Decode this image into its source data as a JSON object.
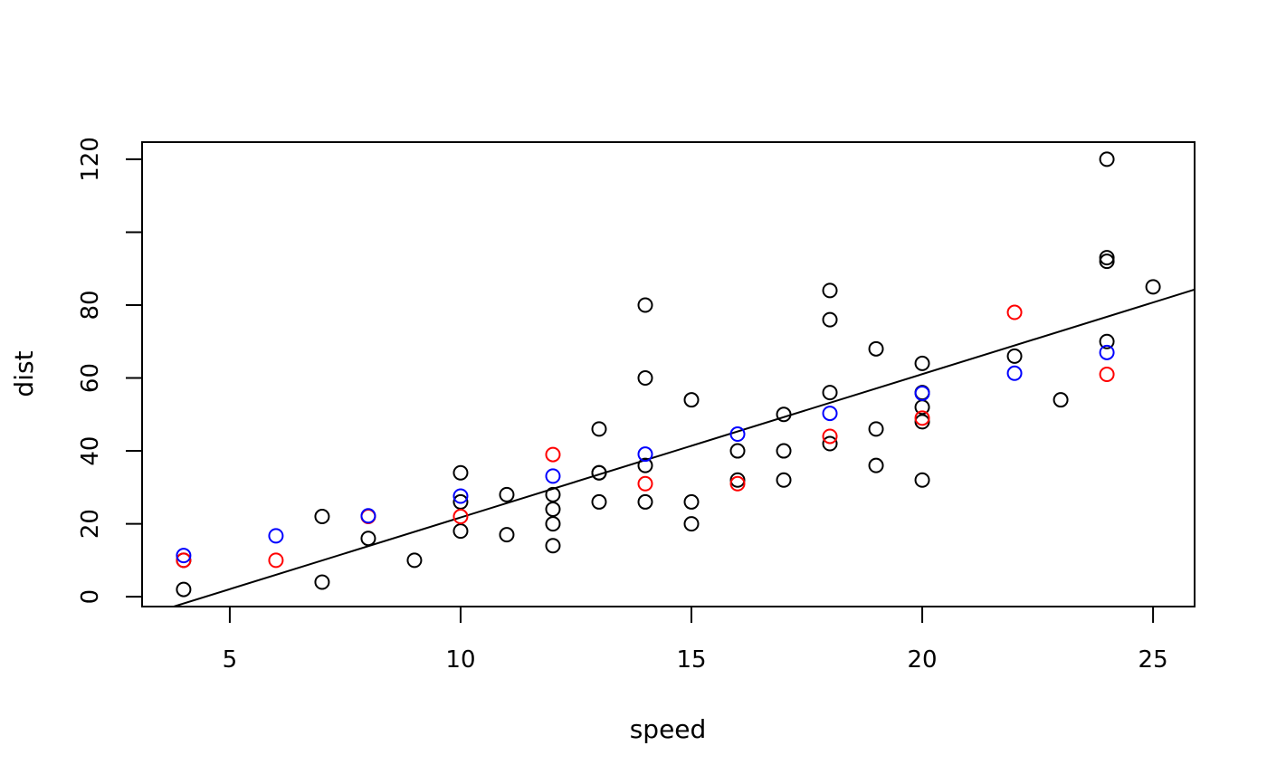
{
  "chart_data": {
    "type": "scatter",
    "xlabel": "speed",
    "ylabel": "dist",
    "xlim": [
      3.1,
      25.9
    ],
    "ylim": [
      -2.7,
      124.7
    ],
    "x_ticks": [
      5,
      10,
      15,
      20,
      25
    ],
    "y_ticks": [
      0,
      20,
      40,
      60,
      80,
      100,
      120
    ],
    "y_tick_labels": [
      "0",
      "20",
      "40",
      "60",
      "80",
      "",
      "120"
    ],
    "grid": false,
    "legend": "none",
    "series": [
      {
        "marker": "open-circle",
        "color": "#000000",
        "points": [
          [
            4,
            2
          ],
          [
            4,
            10
          ],
          [
            7,
            4
          ],
          [
            7,
            22
          ],
          [
            8,
            16
          ],
          [
            9,
            10
          ],
          [
            10,
            18
          ],
          [
            10,
            26
          ],
          [
            10,
            34
          ],
          [
            11,
            17
          ],
          [
            11,
            28
          ],
          [
            12,
            14
          ],
          [
            12,
            20
          ],
          [
            12,
            24
          ],
          [
            12,
            28
          ],
          [
            13,
            26
          ],
          [
            13,
            34
          ],
          [
            13,
            34
          ],
          [
            13,
            46
          ],
          [
            14,
            26
          ],
          [
            14,
            36
          ],
          [
            14,
            60
          ],
          [
            14,
            80
          ],
          [
            15,
            20
          ],
          [
            15,
            26
          ],
          [
            15,
            54
          ],
          [
            16,
            32
          ],
          [
            16,
            40
          ],
          [
            17,
            32
          ],
          [
            17,
            40
          ],
          [
            17,
            50
          ],
          [
            18,
            42
          ],
          [
            18,
            56
          ],
          [
            18,
            76
          ],
          [
            18,
            84
          ],
          [
            19,
            36
          ],
          [
            19,
            46
          ],
          [
            19,
            68
          ],
          [
            20,
            32
          ],
          [
            20,
            48
          ],
          [
            20,
            52
          ],
          [
            20,
            56
          ],
          [
            20,
            64
          ],
          [
            22,
            66
          ],
          [
            23,
            54
          ],
          [
            24,
            70
          ],
          [
            24,
            92
          ],
          [
            24,
            93
          ],
          [
            24,
            120
          ],
          [
            25,
            85
          ]
        ]
      },
      {
        "marker": "open-circle",
        "color": "#ff0000",
        "points": [
          [
            4,
            10
          ],
          [
            6,
            10
          ],
          [
            8,
            22
          ],
          [
            10,
            22
          ],
          [
            12,
            39
          ],
          [
            14,
            31
          ],
          [
            16,
            31
          ],
          [
            18,
            44
          ],
          [
            20,
            49
          ],
          [
            22,
            78
          ],
          [
            24,
            61
          ]
        ]
      },
      {
        "marker": "open-circle",
        "color": "#0000ff",
        "points": [
          [
            4,
            11.3
          ],
          [
            6,
            16.7
          ],
          [
            8,
            22.2
          ],
          [
            10,
            27.6
          ],
          [
            12,
            33.1
          ],
          [
            14,
            39.1
          ],
          [
            16,
            44.6
          ],
          [
            18,
            50.3
          ],
          [
            20,
            55.8
          ],
          [
            22,
            61.3
          ],
          [
            24,
            67.0
          ]
        ]
      }
    ],
    "regression_line": {
      "intercept": -17.58,
      "slope": 3.932,
      "color": "#000000"
    }
  }
}
